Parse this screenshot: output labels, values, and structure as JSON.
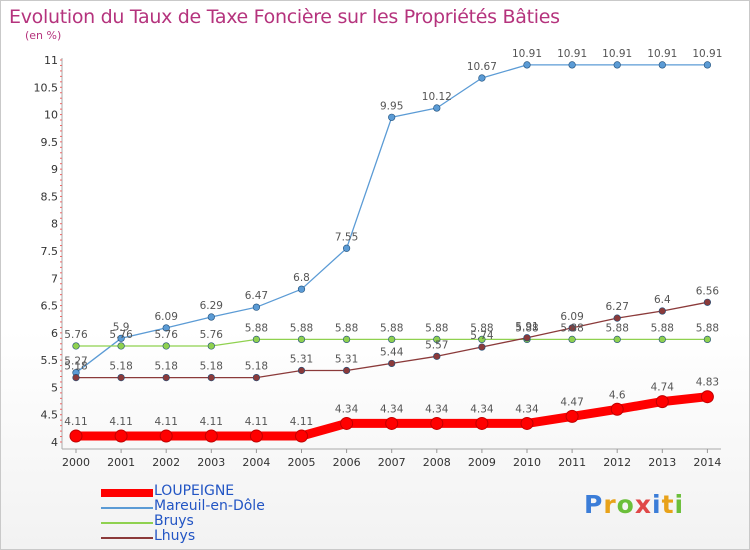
{
  "header": {
    "title": "Evolution du Taux de Taxe Foncière sur les Propriétés Bâties",
    "unit": "(en %)"
  },
  "logo": {
    "text": "Proxiti"
  },
  "chart_data": {
    "type": "line",
    "title": "Evolution du Taux de Taxe Foncière sur les Propriétés Bâties",
    "ylabel": "(en %)",
    "xlabel": "",
    "ylim": [
      4,
      11
    ],
    "yticks": [
      "4",
      "4.5",
      "5",
      "5.5",
      "6",
      "6.5",
      "7",
      "7.5",
      "8",
      "8.5",
      "9",
      "9.5",
      "10",
      "10.5",
      "11"
    ],
    "x": [
      "2000",
      "2001",
      "2002",
      "2003",
      "2004",
      "2005",
      "2006",
      "2007",
      "2008",
      "2009",
      "2010",
      "2011",
      "2012",
      "2013",
      "2014"
    ],
    "grid": false,
    "legend_position": "bottom-left",
    "series": [
      {
        "name": "LOUPEIGNE",
        "color": "#ff0000",
        "values": [
          4.11,
          4.11,
          4.11,
          4.11,
          4.11,
          4.11,
          4.34,
          4.34,
          4.34,
          4.34,
          4.34,
          4.47,
          4.6,
          4.74,
          4.83
        ],
        "labels": [
          "4.11",
          "4.11",
          "4.11",
          "4.11",
          "4.11",
          "4.11",
          "4.34",
          "4.34",
          "4.34",
          "4.34",
          "4.34",
          "4.47",
          "4.6",
          "4.74",
          "4.83"
        ]
      },
      {
        "name": "Mareuil-en-Dôle",
        "color": "#5b9bd5",
        "values": [
          5.27,
          5.9,
          6.09,
          6.29,
          6.47,
          6.8,
          7.55,
          9.95,
          10.12,
          10.67,
          10.91,
          10.91,
          10.91,
          10.91,
          10.91
        ],
        "labels": [
          "5.27",
          "5.9",
          "6.09",
          "6.29",
          "6.47",
          "6.8",
          "7.55",
          "9.95",
          "10.12",
          "10.67",
          "10.91",
          "10.91",
          "10.91",
          "10.91",
          "10.91"
        ]
      },
      {
        "name": "Bruys",
        "color": "#8fd14f",
        "values": [
          5.76,
          5.76,
          5.76,
          5.76,
          5.88,
          5.88,
          5.88,
          5.88,
          5.88,
          5.88,
          5.88,
          5.88,
          5.88,
          5.88,
          5.88
        ],
        "labels": [
          "5.76",
          "5.76",
          "5.76",
          "5.76",
          "5.88",
          "5.88",
          "5.88",
          "5.88",
          "5.88",
          "5.88",
          "5.88",
          "5.88",
          "5.88",
          "5.88",
          "5.88"
        ]
      },
      {
        "name": "Lhuys",
        "color": "#8b3a3a",
        "values": [
          5.18,
          5.18,
          5.18,
          5.18,
          5.18,
          5.31,
          5.31,
          5.44,
          5.57,
          5.74,
          5.91,
          6.09,
          6.27,
          6.4,
          6.56
        ],
        "labels": [
          "5.18",
          "5.18",
          "5.18",
          "5.18",
          "5.18",
          "5.31",
          "5.31",
          "5.44",
          "5.57",
          "5.74",
          "5.91",
          "6.09",
          "6.27",
          "6.4",
          "6.56"
        ]
      }
    ]
  }
}
